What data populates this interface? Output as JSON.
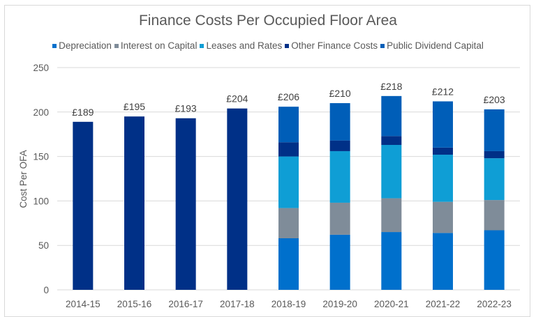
{
  "chart_data": {
    "type": "bar",
    "stacked": true,
    "title": "Finance Costs Per Occupied Floor Area",
    "xlabel": "",
    "ylabel": "Cost Per OFA",
    "ylim": [
      0,
      250
    ],
    "yticks": [
      0,
      50,
      100,
      150,
      200,
      250
    ],
    "grid": true,
    "legend_position": "top",
    "categories": [
      "2014-15",
      "2015-16",
      "2016-17",
      "2017-18",
      "2018-19",
      "2019-20",
      "2020-21",
      "2021-22",
      "2022-23"
    ],
    "series": [
      {
        "name": "Depreciation",
        "color": "#0070CC",
        "values": [
          0,
          0,
          0,
          0,
          58,
          62,
          65,
          64,
          67
        ]
      },
      {
        "name": "Interest on Capital",
        "color": "#7F8C99",
        "values": [
          0,
          0,
          0,
          0,
          34,
          36,
          38,
          35,
          34
        ]
      },
      {
        "name": "Leases and Rates",
        "color": "#0F9ED5",
        "values": [
          0,
          0,
          0,
          0,
          58,
          58,
          60,
          53,
          47
        ]
      },
      {
        "name": "Other Finance Costs",
        "color": "#003087",
        "values": [
          189,
          195,
          193,
          204,
          16,
          12,
          10,
          8,
          8
        ]
      },
      {
        "name": "Public Dividend Capital",
        "color": "#005EB8",
        "values": [
          0,
          0,
          0,
          0,
          40,
          42,
          45,
          52,
          47
        ]
      }
    ],
    "totals": [
      189,
      195,
      193,
      204,
      206,
      210,
      218,
      212,
      203
    ],
    "total_labels": [
      "£189",
      "£195",
      "£193",
      "£204",
      "£206",
      "£210",
      "£218",
      "£212",
      "£203"
    ]
  }
}
